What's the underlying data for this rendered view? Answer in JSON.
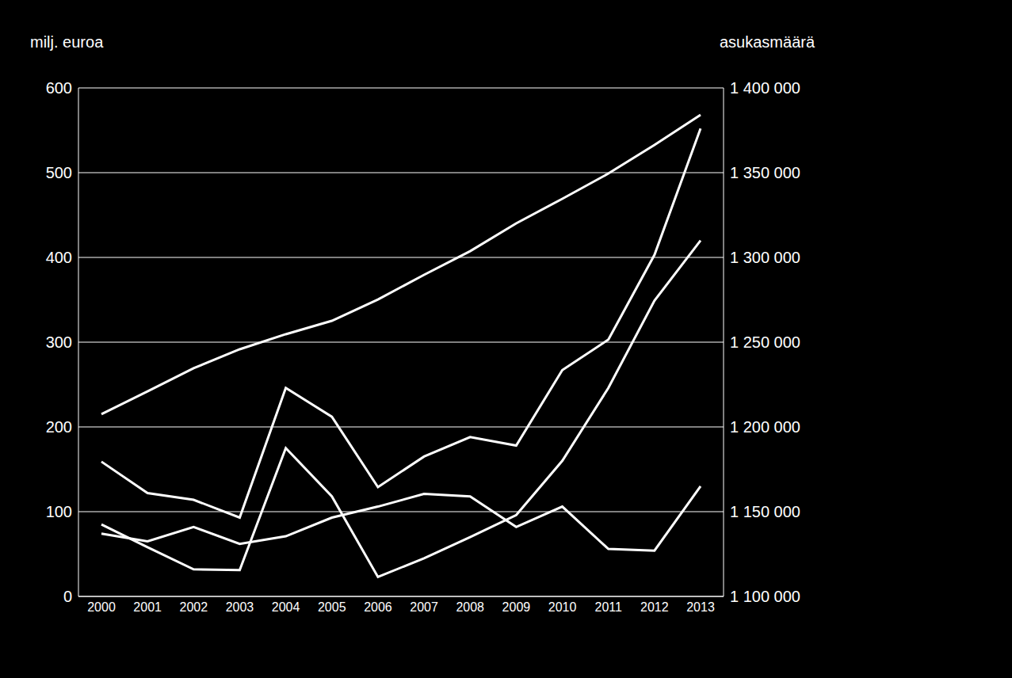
{
  "chart_data": {
    "type": "line",
    "y_label": "milj. euroa",
    "y2_label": "asukasmäärä",
    "categories": [
      "2000",
      "2001",
      "2002",
      "2003",
      "2004",
      "2005",
      "2006",
      "2007",
      "2008",
      "2009",
      "2010",
      "2011",
      "2012",
      "2013"
    ],
    "series": [
      {
        "color": "#ffffff",
        "axis": "y2",
        "values": [
          1207500,
          1221000,
          1234600,
          1245800,
          1254700,
          1262600,
          1275200,
          1289700,
          1303700,
          1320100,
          1334600,
          1349500,
          1366400,
          1384100
        ]
      },
      {
        "color": "#ffffff",
        "values": [
          159,
          122,
          114,
          93,
          246,
          212,
          129,
          165,
          188,
          178,
          267,
          303,
          403,
          552
        ]
      },
      {
        "color": "#ffffff",
        "values": [
          85,
          58,
          32,
          31,
          175,
          118,
          23,
          45,
          70,
          96,
          160,
          246,
          349,
          420
        ]
      },
      {
        "color": "#ffffff",
        "values": [
          74,
          65,
          82,
          62,
          71,
          93,
          106,
          121,
          118,
          82,
          106,
          56,
          54,
          130
        ]
      }
    ],
    "ylim": [
      0,
      600
    ],
    "yticks": [
      0,
      100,
      200,
      300,
      400,
      500,
      600
    ],
    "y2lim": [
      1100000,
      1400000
    ],
    "y2ticks": [
      {
        "value": 1100000,
        "label": "1 100 000"
      },
      {
        "value": 1150000,
        "label": "1 150 000"
      },
      {
        "value": 1200000,
        "label": "1 200 000"
      },
      {
        "value": 1250000,
        "label": "1 250 000"
      },
      {
        "value": 1300000,
        "label": "1 300 000"
      },
      {
        "value": 1350000,
        "label": "1 350 000"
      },
      {
        "value": 1400000,
        "label": "1 400 000"
      }
    ],
    "grid": true
  }
}
